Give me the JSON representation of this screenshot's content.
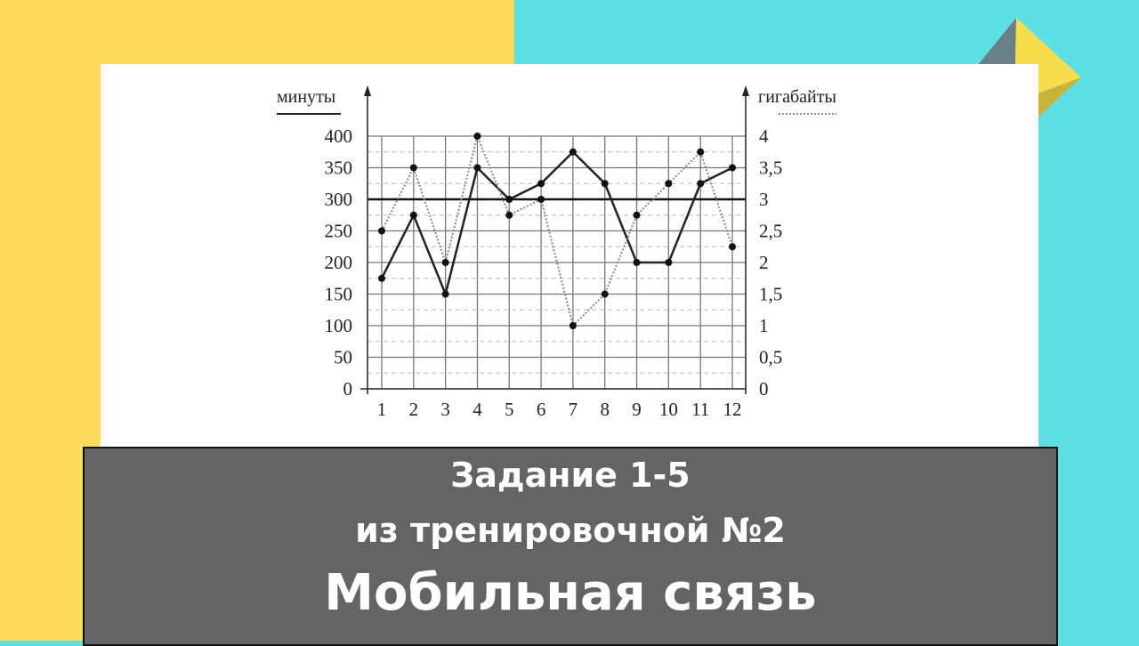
{
  "banner": {
    "line1": "Задание 1-5",
    "line2": "из тренировочной №2",
    "line3": "Мобильная связь"
  },
  "colors": {
    "left_bg": "#fddc5c",
    "right_bg": "#5ce0e4",
    "banner": "#646464"
  },
  "chart_data": {
    "type": "line",
    "y_left_label": "минуты",
    "y_right_label": "гигабайты",
    "x": [
      1,
      2,
      3,
      4,
      5,
      6,
      7,
      8,
      9,
      10,
      11,
      12
    ],
    "ylim_left": [
      0,
      400
    ],
    "ylim_right": [
      0,
      4
    ],
    "yticks_left": [
      "0",
      "50",
      "100",
      "150",
      "200",
      "250",
      "300",
      "350",
      "400"
    ],
    "yticks_right": [
      "0",
      "0,5",
      "1",
      "1,5",
      "2",
      "2,5",
      "3",
      "3,5",
      "4"
    ],
    "reference_line_left": 300,
    "grid": true,
    "series": [
      {
        "axis": "left",
        "style": "solid",
        "values": [
          175,
          275,
          150,
          350,
          300,
          325,
          375,
          325,
          200,
          200,
          325,
          350
        ]
      },
      {
        "axis": "right",
        "style": "dotted",
        "values": [
          2.5,
          3.5,
          2,
          4,
          2.75,
          3,
          1,
          1.5,
          2.75,
          3.25,
          3.75,
          2.25
        ]
      }
    ]
  }
}
